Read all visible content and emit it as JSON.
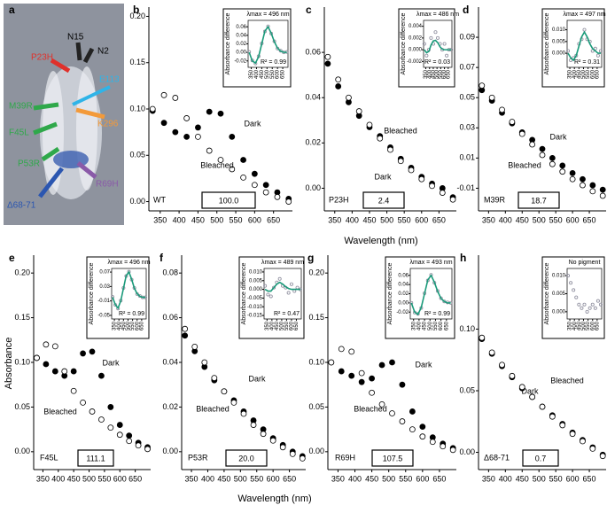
{
  "figure_a": {
    "panel_label": "a",
    "labels": [
      "N15",
      "N2",
      "P23H",
      "E113",
      "M39R",
      "F45L",
      "K296",
      "P53R",
      "R69H",
      "Δ68-71"
    ]
  },
  "chart_data": [
    {
      "type": "scatter",
      "panel_label": "b",
      "mutant": "WT",
      "activity": "100.0",
      "x": [
        330,
        360,
        390,
        420,
        450,
        480,
        510,
        540,
        570,
        600,
        630,
        660,
        690
      ],
      "xlim": [
        320,
        700
      ],
      "xticks": [
        350,
        400,
        450,
        500,
        550,
        600,
        650
      ],
      "ylim": [
        -0.01,
        0.21
      ],
      "yticks": [
        {
          "value": 0,
          "label": "0.00"
        },
        0.05,
        {
          "value": 0.1,
          "label": "0.10"
        },
        0.15,
        {
          "value": 0.2,
          "label": "0.20"
        }
      ],
      "series": [
        {
          "name": "Dark",
          "color": "#000000",
          "values": [
            0.098,
            0.085,
            0.075,
            0.07,
            0.08,
            0.097,
            0.095,
            0.07,
            0.045,
            0.03,
            0.018,
            0.01,
            0.003
          ]
        },
        {
          "name": "Bleached",
          "color": "#ffffff",
          "values": [
            0.1,
            0.115,
            0.112,
            0.09,
            0.07,
            0.055,
            0.045,
            0.035,
            0.026,
            0.018,
            0.01,
            0.005,
            0
          ]
        }
      ],
      "inset": {
        "title": "λmax = 496 nm",
        "ylabel": "Absorbance difference",
        "r2": "R² = 0.99",
        "xlim": [
          320,
          700
        ],
        "xticks": [
          350,
          400,
          450,
          500,
          550,
          600,
          650
        ],
        "ylim": [
          -0.035,
          0.075
        ],
        "yticks": [
          -0.02,
          {
            "value": 0,
            "label": "0.00"
          },
          0.02,
          0.04,
          0.06
        ],
        "series": [
          {
            "color": "#8c8c9c",
            "values": [
              0.001,
              -0.019,
              -0.026,
              -0.009,
              0.021,
              0.049,
              0.061,
              0.044,
              0.026,
              0.009,
              0.004,
              0,
              0.001
            ]
          },
          {
            "color": "#1a9a7a",
            "values": [
              0,
              -0.02,
              -0.025,
              -0.01,
              0.02,
              0.05,
              0.06,
              0.045,
              0.025,
              0.01,
              0.003,
              0,
              0
            ]
          }
        ]
      }
    },
    {
      "type": "scatter",
      "panel_label": "c",
      "mutant": "P23H",
      "activity": "2.4",
      "xlabel": "Wavelength (nm)",
      "x": [
        330,
        360,
        390,
        420,
        450,
        480,
        510,
        540,
        570,
        600,
        630,
        660,
        690
      ],
      "xlim": [
        320,
        700
      ],
      "xticks": [
        350,
        400,
        450,
        500,
        550,
        600,
        650
      ],
      "ylim": [
        -0.01,
        0.08
      ],
      "yticks": [
        {
          "value": 0,
          "label": "0.00"
        },
        0.02,
        0.04,
        0.06
      ],
      "series": [
        {
          "name": "Dark",
          "color": "#000000",
          "values": [
            0.055,
            0.045,
            0.038,
            0.032,
            0.027,
            0.023,
            0.018,
            0.013,
            0.009,
            0.005,
            0.002,
            0,
            -0.004
          ]
        },
        {
          "name": "Bleached",
          "color": "#ffffff",
          "values": [
            0.058,
            0.048,
            0.04,
            0.034,
            0.028,
            0.022,
            0.017,
            0.012,
            0.008,
            0.004,
            0.001,
            -0.002,
            -0.005
          ]
        }
      ],
      "inset": {
        "title": "λmax = 486 nm",
        "ylabel": "Absorbance difference",
        "r2": "R² = 0.03",
        "xlim": [
          320,
          700
        ],
        "xticks": [
          350,
          400,
          450,
          500,
          550,
          600,
          650
        ],
        "ylim": [
          -0.003,
          0.005
        ],
        "yticks": [
          -0.002,
          {
            "value": 0,
            "label": "0.000"
          },
          0.002,
          0.004
        ],
        "series": [
          {
            "color": "#8c8c9c",
            "values": [
              0.001,
              -0.001,
              0,
              0.002,
              0.001,
              0.003,
              0.002,
              0.001,
              0,
              0.001,
              -0.001,
              0,
              0
            ]
          },
          {
            "color": "#1a9a7a",
            "values": [
              0,
              -0.0005,
              -0.0003,
              0.0008,
              0.0015,
              0.0016,
              0.0012,
              0.0005,
              0.0001,
              0,
              0,
              0,
              0
            ]
          }
        ]
      }
    },
    {
      "type": "scatter",
      "panel_label": "d",
      "mutant": "M39R",
      "activity": "18.7",
      "x": [
        330,
        360,
        390,
        420,
        450,
        480,
        510,
        540,
        570,
        600,
        630,
        660,
        690
      ],
      "xlim": [
        320,
        700
      ],
      "xticks": [
        350,
        400,
        450,
        500,
        550,
        600,
        650
      ],
      "ylim": [
        -0.025,
        0.11
      ],
      "yticks": [
        -0.01,
        0.01,
        0.03,
        0.05,
        0.07,
        0.09
      ],
      "series": [
        {
          "name": "Dark",
          "color": "#000000",
          "values": [
            0.055,
            0.048,
            0.04,
            0.033,
            0.027,
            0.022,
            0.016,
            0.01,
            0.005,
            0,
            -0.004,
            -0.008,
            -0.011
          ]
        },
        {
          "name": "Bleached",
          "color": "#ffffff",
          "values": [
            0.058,
            0.05,
            0.042,
            0.034,
            0.026,
            0.019,
            0.012,
            0.006,
            0.001,
            -0.004,
            -0.008,
            -0.012,
            -0.015
          ]
        }
      ],
      "inset": {
        "title": "λmax = 497 nm",
        "ylabel": "Absorbance difference",
        "r2": "R² = 0.31",
        "xlim": [
          320,
          700
        ],
        "xticks": [
          350,
          400,
          450,
          500,
          550,
          600,
          650
        ],
        "ylim": [
          -0.006,
          0.014
        ],
        "yticks": [
          {
            "value": 0,
            "label": "0.000"
          },
          0.005,
          {
            "value": 0.01,
            "label": "0.010"
          }
        ],
        "series": [
          {
            "color": "#8c8c9c",
            "values": [
              0.001,
              -0.003,
              -0.002,
              -0.001,
              0.004,
              0.006,
              0.01,
              0.006,
              0.005,
              0.001,
              0.002,
              -0.001,
              0.001
            ]
          },
          {
            "color": "#1a9a7a",
            "values": [
              0,
              -0.002,
              -0.003,
              -0.001,
              0.003,
              0.007,
              0.009,
              0.007,
              0.004,
              0.002,
              0.001,
              0,
              0
            ]
          }
        ]
      }
    },
    {
      "type": "scatter",
      "panel_label": "e",
      "mutant": "F45L",
      "activity": "111.1",
      "ylabel": "Absorbance",
      "x": [
        330,
        360,
        390,
        420,
        450,
        480,
        510,
        540,
        570,
        600,
        630,
        660,
        690
      ],
      "xlim": [
        320,
        700
      ],
      "xticks": [
        350,
        400,
        450,
        500,
        550,
        600,
        650
      ],
      "ylim": [
        -0.02,
        0.22
      ],
      "yticks": [
        {
          "value": 0,
          "label": "0.00"
        },
        0.05,
        {
          "value": 0.1,
          "label": "0.10"
        },
        0.15,
        {
          "value": 0.2,
          "label": "0.20"
        }
      ],
      "series": [
        {
          "name": "Dark",
          "color": "#000000",
          "values": [
            0.105,
            0.098,
            0.09,
            0.085,
            0.09,
            0.11,
            0.112,
            0.085,
            0.05,
            0.03,
            0.018,
            0.01,
            0.005
          ]
        },
        {
          "name": "Bleached",
          "color": "#ffffff",
          "values": [
            0.105,
            0.12,
            0.118,
            0.09,
            0.068,
            0.055,
            0.045,
            0.036,
            0.027,
            0.019,
            0.012,
            0.007,
            0.003
          ]
        }
      ],
      "inset": {
        "title": "λmax = 496 nm",
        "ylabel": "Absorbance difference",
        "r2": "R² = 0.99",
        "xlim": [
          320,
          700
        ],
        "xticks": [
          350,
          400,
          450,
          500,
          550,
          600,
          650
        ],
        "ylim": [
          -0.06,
          0.08
        ],
        "yticks": [
          -0.05,
          -0.01,
          0.03,
          0.07
        ],
        "series": [
          {
            "color": "#8c8c9c",
            "values": [
              0.001,
              -0.021,
              -0.031,
              -0.009,
              0.026,
              0.059,
              0.071,
              0.049,
              0.026,
              0.009,
              0.004,
              0,
              0
            ]
          },
          {
            "color": "#1a9a7a",
            "values": [
              0,
              -0.02,
              -0.03,
              -0.01,
              0.025,
              0.06,
              0.07,
              0.05,
              0.025,
              0.01,
              0.003,
              0,
              0
            ]
          }
        ]
      }
    },
    {
      "type": "scatter",
      "panel_label": "f",
      "mutant": "P53R",
      "activity": "20.0",
      "xlabel": "Wavelength (nm)",
      "x": [
        330,
        360,
        390,
        420,
        450,
        480,
        510,
        540,
        570,
        600,
        630,
        660,
        690
      ],
      "xlim": [
        320,
        700
      ],
      "xticks": [
        350,
        400,
        450,
        500,
        550,
        600,
        650
      ],
      "ylim": [
        -0.008,
        0.088
      ],
      "yticks": [
        {
          "value": 0,
          "label": "0.00"
        },
        0.02,
        0.04,
        0.06,
        0.08
      ],
      "series": [
        {
          "name": "Dark",
          "color": "#000000",
          "values": [
            0.052,
            0.045,
            0.038,
            0.032,
            0.027,
            0.023,
            0.018,
            0.014,
            0.01,
            0.006,
            0.003,
            0,
            -0.002
          ]
        },
        {
          "name": "Bleached",
          "color": "#ffffff",
          "values": [
            0.055,
            0.047,
            0.04,
            0.033,
            0.027,
            0.022,
            0.017,
            0.012,
            0.008,
            0.005,
            0.002,
            -0.001,
            -0.003
          ]
        }
      ],
      "inset": {
        "title": "λmax = 489 nm",
        "ylabel": "Absorbance difference",
        "r2": "R² = 0.47",
        "xlim": [
          320,
          700
        ],
        "xticks": [
          350,
          400,
          450,
          500,
          550,
          600,
          650
        ],
        "ylim": [
          -0.017,
          0.012
        ],
        "yticks": [
          -0.015,
          {
            "value": -0.01,
            "label": "-0.010"
          },
          -0.005,
          {
            "value": 0,
            "label": "0.000"
          },
          0.005,
          {
            "value": 0.01,
            "label": "0.010"
          }
        ],
        "series": [
          {
            "color": "#8c8c9c",
            "values": [
              0.002,
              -0.003,
              -0.004,
              0.001,
              0.004,
              0.006,
              0.002,
              0.001,
              -0.002,
              0.003,
              -0.001,
              0.001,
              0
            ]
          },
          {
            "color": "#1a9a7a",
            "values": [
              0,
              -0.001,
              -0.001,
              0.001,
              0.003,
              0.004,
              0.003,
              0.0015,
              0.0005,
              0,
              0,
              0,
              0
            ]
          }
        ]
      }
    },
    {
      "type": "scatter",
      "panel_label": "g",
      "mutant": "R69H",
      "activity": "107.5",
      "x": [
        330,
        360,
        390,
        420,
        450,
        480,
        510,
        540,
        570,
        600,
        630,
        660,
        690
      ],
      "xlim": [
        320,
        700
      ],
      "xticks": [
        350,
        400,
        450,
        500,
        550,
        600,
        650
      ],
      "ylim": [
        -0.02,
        0.22
      ],
      "yticks": [
        {
          "value": 0,
          "label": "0.00"
        },
        0.05,
        {
          "value": 0.1,
          "label": "0.10"
        },
        0.15,
        {
          "value": 0.2,
          "label": "0.20"
        }
      ],
      "series": [
        {
          "name": "Dark",
          "color": "#000000",
          "values": [
            0.1,
            0.09,
            0.085,
            0.078,
            0.082,
            0.097,
            0.1,
            0.075,
            0.045,
            0.028,
            0.016,
            0.009,
            0.004
          ]
        },
        {
          "name": "Bleached",
          "color": "#ffffff",
          "values": [
            0.1,
            0.115,
            0.112,
            0.088,
            0.066,
            0.053,
            0.043,
            0.034,
            0.025,
            0.017,
            0.011,
            0.006,
            0.002
          ]
        }
      ],
      "inset": {
        "title": "λmax = 493 nm",
        "ylabel": "Absorbance difference",
        "r2": "R² = 0.99",
        "xlim": [
          320,
          700
        ],
        "xticks": [
          350,
          400,
          450,
          500,
          550,
          600,
          650
        ],
        "ylim": [
          -0.035,
          0.075
        ],
        "yticks": [
          -0.02,
          {
            "value": 0,
            "label": "0.00"
          },
          0.02,
          0.04,
          0.06
        ],
        "series": [
          {
            "color": "#8c8c9c",
            "values": [
              0,
              -0.021,
              -0.024,
              -0.011,
              0.021,
              0.049,
              0.061,
              0.044,
              0.026,
              0.01,
              0.003,
              0.001,
              0
            ]
          },
          {
            "color": "#1a9a7a",
            "values": [
              0,
              -0.02,
              -0.025,
              -0.01,
              0.02,
              0.05,
              0.06,
              0.045,
              0.025,
              0.01,
              0.003,
              0,
              0
            ]
          }
        ]
      }
    },
    {
      "type": "scatter",
      "panel_label": "h",
      "mutant": "Δ68-71",
      "activity": "0.7",
      "x": [
        330,
        360,
        390,
        420,
        450,
        480,
        510,
        540,
        570,
        600,
        630,
        660,
        690
      ],
      "xlim": [
        320,
        700
      ],
      "xticks": [
        350,
        400,
        450,
        500,
        550,
        600,
        650
      ],
      "ylim": [
        -0.014,
        0.16
      ],
      "yticks": [
        {
          "value": 0,
          "label": "0.00"
        },
        0.05,
        {
          "value": 0.1,
          "label": "0.10"
        }
      ],
      "series": [
        {
          "name": "Dark",
          "color": "#000000",
          "values": [
            0.092,
            0.08,
            0.07,
            0.061,
            0.052,
            0.045,
            0.037,
            0.03,
            0.023,
            0.016,
            0.01,
            0.004,
            -0.002
          ]
        },
        {
          "name": "Bleached",
          "color": "#ffffff",
          "values": [
            0.093,
            0.081,
            0.071,
            0.062,
            0.053,
            0.045,
            0.037,
            0.029,
            0.022,
            0.015,
            0.009,
            0.003,
            -0.003
          ]
        }
      ],
      "inset": {
        "title": "No pigment",
        "ylabel": "Absorbance difference",
        "xlim": [
          320,
          700
        ],
        "xticks": [
          350,
          400,
          450,
          500,
          550,
          600,
          650
        ],
        "ylim": [
          -0.002,
          0.012
        ],
        "yticks": [
          {
            "value": 0,
            "label": "0.000"
          },
          0.005,
          {
            "value": 0.01,
            "label": "0.010"
          }
        ],
        "series": [
          {
            "color": "#8c8c9c",
            "values": [
              0.01,
              0.008,
              0.006,
              0.004,
              0.002,
              0.001,
              0.002,
              0,
              0.001,
              0.002,
              0.001,
              0.003,
              0.002
            ]
          }
        ]
      }
    }
  ]
}
